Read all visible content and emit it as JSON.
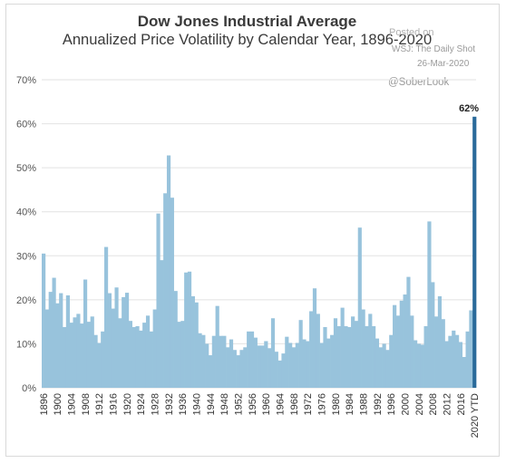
{
  "chart_data": {
    "type": "bar",
    "title": "Dow Jones Industrial Average",
    "subtitle": "Annualized Price Volatility by Calendar Year, 1896-2020",
    "ylim": [
      0,
      70
    ],
    "y_ticks": [
      "0%",
      "10%",
      "20%",
      "30%",
      "40%",
      "50%",
      "60%",
      "70%"
    ],
    "x_tick_labels": [
      "1896",
      "1900",
      "1904",
      "1908",
      "1912",
      "1916",
      "1920",
      "1924",
      "1928",
      "1932",
      "1936",
      "1940",
      "1944",
      "1948",
      "1952",
      "1956",
      "1960",
      "1964",
      "1968",
      "1972",
      "1976",
      "1980",
      "1984",
      "1988",
      "1992",
      "1996",
      "2000",
      "2004",
      "2008",
      "2012",
      "2016",
      "2020 YTD"
    ],
    "grid": true,
    "categories": [
      "1896",
      "1897",
      "1898",
      "1899",
      "1900",
      "1901",
      "1902",
      "1903",
      "1904",
      "1905",
      "1906",
      "1907",
      "1908",
      "1909",
      "1910",
      "1911",
      "1912",
      "1913",
      "1914",
      "1915",
      "1916",
      "1917",
      "1918",
      "1919",
      "1920",
      "1921",
      "1922",
      "1923",
      "1924",
      "1925",
      "1926",
      "1927",
      "1928",
      "1929",
      "1930",
      "1931",
      "1932",
      "1933",
      "1934",
      "1935",
      "1936",
      "1937",
      "1938",
      "1939",
      "1940",
      "1941",
      "1942",
      "1943",
      "1944",
      "1945",
      "1946",
      "1947",
      "1948",
      "1949",
      "1950",
      "1951",
      "1952",
      "1953",
      "1954",
      "1955",
      "1956",
      "1957",
      "1958",
      "1959",
      "1960",
      "1961",
      "1962",
      "1963",
      "1964",
      "1965",
      "1966",
      "1967",
      "1968",
      "1969",
      "1970",
      "1971",
      "1972",
      "1973",
      "1974",
      "1975",
      "1976",
      "1977",
      "1978",
      "1979",
      "1980",
      "1981",
      "1982",
      "1983",
      "1984",
      "1985",
      "1986",
      "1987",
      "1988",
      "1989",
      "1990",
      "1991",
      "1992",
      "1993",
      "1994",
      "1995",
      "1996",
      "1997",
      "1998",
      "1999",
      "2000",
      "2001",
      "2002",
      "2003",
      "2004",
      "2005",
      "2006",
      "2007",
      "2008",
      "2009",
      "2010",
      "2011",
      "2012",
      "2013",
      "2014",
      "2015",
      "2016",
      "2017",
      "2018",
      "2019",
      "2020 YTD"
    ],
    "values": [
      30.5,
      17.8,
      21.8,
      25.0,
      19.2,
      21.5,
      13.8,
      21.0,
      14.8,
      16.0,
      16.8,
      14.6,
      24.6,
      15.0,
      16.2,
      12.0,
      10.2,
      12.8,
      32.0,
      21.5,
      18.0,
      22.8,
      15.8,
      20.6,
      21.6,
      15.2,
      13.8,
      14.0,
      13.0,
      14.8,
      16.4,
      12.8,
      17.8,
      39.6,
      29.0,
      44.2,
      52.8,
      43.2,
      22.0,
      15.0,
      15.2,
      26.2,
      26.4,
      20.8,
      19.4,
      12.4,
      12.0,
      10.0,
      7.4,
      11.8,
      18.6,
      11.8,
      11.8,
      9.2,
      11.0,
      8.6,
      7.4,
      8.6,
      9.2,
      12.8,
      12.8,
      11.4,
      9.6,
      9.6,
      10.6,
      9.0,
      15.8,
      8.2,
      6.2,
      7.8,
      11.6,
      10.2,
      9.2,
      10.2,
      15.4,
      11.0,
      10.6,
      17.4,
      22.6,
      16.8,
      10.2,
      13.8,
      11.2,
      12.0,
      15.8,
      14.0,
      18.2,
      14.0,
      13.8,
      16.2,
      15.2,
      36.4,
      17.8,
      14.0,
      16.8,
      14.0,
      11.2,
      9.2,
      10.0,
      8.6,
      12.0,
      18.8,
      16.4,
      19.8,
      21.2,
      25.2,
      16.4,
      10.8,
      10.0,
      9.8,
      14.0,
      37.8,
      24.0,
      16.2,
      20.8,
      15.6,
      10.6,
      11.8,
      13.0,
      12.0,
      10.4,
      7.0,
      12.8,
      17.6,
      61.6
    ],
    "highlight_label": "62%",
    "colors": {
      "bar": "#98c3dc",
      "highlight_bar": "#2a6a9a",
      "grid": "#e2e2e2"
    }
  },
  "watermark": {
    "line1": "Posted on",
    "line2": "WSJ: The Daily Shot",
    "line3": "26-Mar-2020",
    "handle": "@SoberLook"
  }
}
